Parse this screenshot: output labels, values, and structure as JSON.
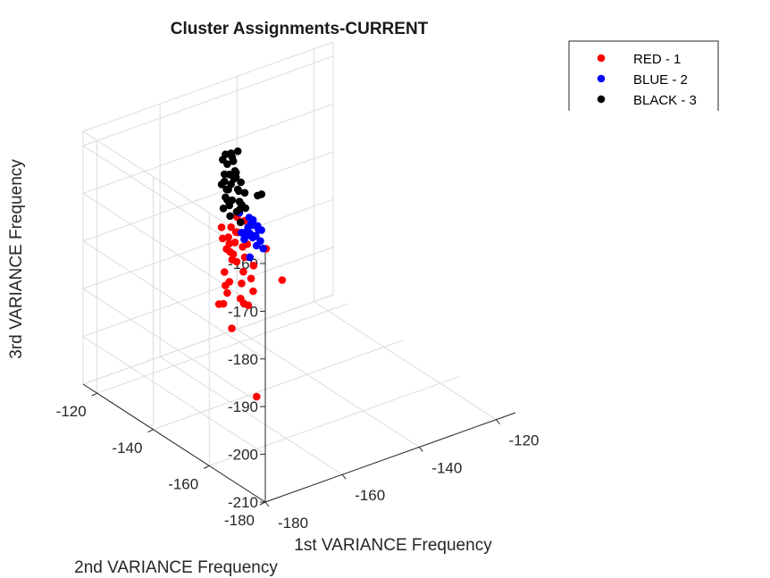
{
  "chart_data": {
    "type": "scatter",
    "projection": "3d",
    "title": "Cluster Assignments-CURRENT",
    "xlabel": "1st VARIANCE Frequency",
    "ylabel": "2nd VARIANCE Frequency",
    "zlabel": "3rd VARIANCE Frequency",
    "xlim": [
      -180,
      -115
    ],
    "ylim": [
      -180,
      -115
    ],
    "zlim": [
      -210,
      -157
    ],
    "xticks": [
      -180,
      -160,
      -140,
      -120
    ],
    "yticks": [
      -180,
      -160,
      -140,
      -120
    ],
    "zticks": [
      -210,
      -200,
      -190,
      -180,
      -170,
      -160
    ],
    "xtick_labels": [
      "-180",
      "-160",
      "-140",
      "-120"
    ],
    "ytick_labels": [
      "-180",
      "-160",
      "-140",
      "-120"
    ],
    "ztick_labels": [
      "-210",
      "-200",
      "-190",
      "-180",
      "-170",
      "-160"
    ],
    "grid": true,
    "legend_position": "top-right",
    "series": [
      {
        "name": "RED - 1",
        "color": "#ff0000",
        "points": [
          [
            -150,
            -126,
            -193.0
          ],
          [
            -152,
            -126,
            -181.0
          ],
          [
            -149,
            -127,
            -182.5
          ],
          [
            -151,
            -128,
            -180.5
          ],
          [
            -150,
            -129,
            -181.5
          ],
          [
            -149,
            -130,
            -179.0
          ],
          [
            -151,
            -127,
            -183.0
          ],
          [
            -150,
            -128,
            -184.0
          ],
          [
            -148,
            -126,
            -180.0
          ],
          [
            -152,
            -129,
            -185.0
          ],
          [
            -149,
            -131,
            -183.5
          ],
          [
            -150,
            -125,
            -186.5
          ],
          [
            -151,
            -130,
            -187.0
          ],
          [
            -148,
            -128,
            -185.5
          ],
          [
            -150,
            -127,
            -188.0
          ],
          [
            -152,
            -127,
            -190.0
          ],
          [
            -149,
            -129,
            -192.5
          ],
          [
            -150,
            -130,
            -195.0
          ],
          [
            -151,
            -126,
            -193.5
          ],
          [
            -147,
            -127,
            -198.0
          ],
          [
            -153,
            -131,
            -200.0
          ],
          [
            -148,
            -130,
            -197.0
          ],
          [
            -146,
            -129,
            -195.0
          ],
          [
            -150,
            -131,
            -189.0
          ],
          [
            -151,
            -125,
            -184.0
          ],
          [
            -149,
            -126,
            -187.5
          ],
          [
            -152,
            -128,
            -194.0
          ],
          [
            -148,
            -131,
            -191.0
          ],
          [
            -150,
            -126,
            -185.0
          ],
          [
            -146,
            -126,
            -189.0
          ],
          [
            -153,
            -128,
            -196.0
          ],
          [
            -143,
            -125,
            -192.0
          ],
          [
            -139,
            -124,
            -190.0
          ],
          [
            -137,
            -127,
            -196.0
          ],
          [
            -160,
            -136,
            -191.0
          ],
          [
            -148,
            -133,
            -215.0
          ]
        ]
      },
      {
        "name": "BLUE - 2",
        "color": "#0000ff",
        "points": [
          [
            -175,
            -168,
            -157.8
          ],
          [
            -174,
            -167,
            -158.5
          ],
          [
            -176,
            -169,
            -159.0
          ],
          [
            -173,
            -168,
            -159.5
          ],
          [
            -175,
            -166,
            -160.2
          ],
          [
            -174,
            -170,
            -160.8
          ],
          [
            -176,
            -167,
            -161.0
          ],
          [
            -173,
            -166,
            -158.2
          ],
          [
            -175,
            -169,
            -157.6
          ],
          [
            -174,
            -168,
            -160.5
          ],
          [
            -176,
            -168,
            -159.8
          ],
          [
            -173,
            -167,
            -161.2
          ],
          [
            -175,
            -167,
            -158.8
          ],
          [
            -174,
            -169,
            -158.0
          ],
          [
            -176,
            -166,
            -160.0
          ],
          [
            -173,
            -169,
            -159.2
          ],
          [
            -175,
            -170,
            -161.5
          ],
          [
            -174,
            -166,
            -157.4
          ],
          [
            -176,
            -170,
            -159.5
          ],
          [
            -174,
            -171,
            -162.0
          ],
          [
            -178,
            -168,
            -154.5
          ],
          [
            -176,
            -169,
            -164.0
          ]
        ]
      },
      {
        "name": "BLACK - 3",
        "color": "#000000",
        "points": [
          [
            -151,
            -126,
            -166.0
          ],
          [
            -150,
            -127,
            -166.5
          ],
          [
            -152,
            -128,
            -167.0
          ],
          [
            -151,
            -125,
            -167.5
          ],
          [
            -149,
            -126,
            -168.0
          ],
          [
            -150,
            -128,
            -169.0
          ],
          [
            -152,
            -127,
            -169.5
          ],
          [
            -151,
            -129,
            -170.0
          ],
          [
            -150,
            -126,
            -170.5
          ],
          [
            -149,
            -127,
            -171.0
          ],
          [
            -151,
            -128,
            -171.5
          ],
          [
            -152,
            -126,
            -172.0
          ],
          [
            -150,
            -129,
            -172.5
          ],
          [
            -151,
            -127,
            -173.0
          ],
          [
            -149,
            -128,
            -173.5
          ],
          [
            -150,
            -125,
            -174.0
          ],
          [
            -152,
            -128,
            -174.5
          ],
          [
            -151,
            -126,
            -175.0
          ],
          [
            -150,
            -127,
            -175.5
          ],
          [
            -149,
            -129,
            -176.0
          ],
          [
            -151,
            -130,
            -176.5
          ],
          [
            -150,
            -126,
            -177.0
          ],
          [
            -152,
            -129,
            -177.5
          ],
          [
            -148,
            -127,
            -178.0
          ],
          [
            -151,
            -128,
            -165.0
          ],
          [
            -150,
            -129,
            -164.5
          ],
          [
            -149,
            -127,
            -170.0
          ],
          [
            -152,
            -127,
            -171.0
          ],
          [
            -151,
            -131,
            -174.0
          ],
          [
            -147,
            -126,
            -173.0
          ],
          [
            -153,
            -128,
            -176.0
          ],
          [
            -139,
            -121,
            -180.0
          ],
          [
            -138,
            -121,
            -180.0
          ],
          [
            -146,
            -126,
            -175.5
          ],
          [
            -150,
            -130,
            -179.0
          ],
          [
            -148,
            -129,
            -177.0
          ]
        ]
      }
    ]
  }
}
